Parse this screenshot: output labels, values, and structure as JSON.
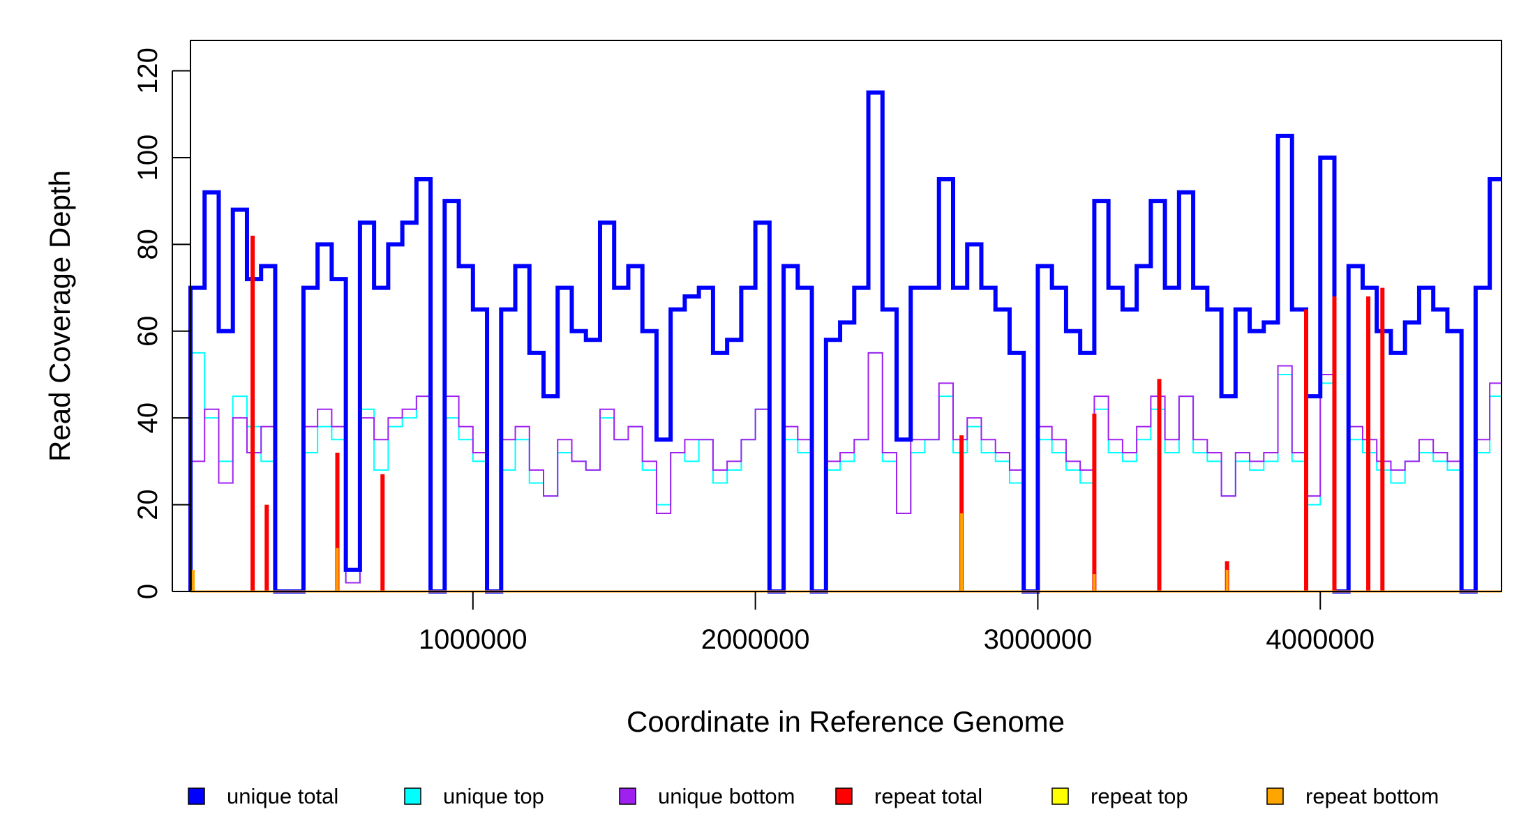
{
  "chart_data": {
    "type": "line",
    "title": "",
    "xlabel": "Coordinate in Reference Genome",
    "ylabel": "Read Coverage Depth",
    "xlim": [
      0,
      4641652
    ],
    "ylim": [
      0,
      127
    ],
    "xticks": [
      1000000,
      2000000,
      3000000,
      4000000
    ],
    "xtick_labels": [
      "1000000",
      "2000000",
      "3000000",
      "4000000"
    ],
    "yticks": [
      0,
      20,
      40,
      60,
      80,
      100,
      120
    ],
    "ytick_labels": [
      "0",
      "20",
      "40",
      "60",
      "80",
      "100",
      "120"
    ],
    "grid": false,
    "legend_position": "bottom",
    "series": [
      {
        "name": "unique total",
        "color": "#0000ff",
        "x": [
          0,
          50000,
          100000,
          150000,
          200000,
          250000,
          300000,
          350000,
          400000,
          450000,
          500000,
          550000,
          600000,
          650000,
          700000,
          750000,
          800000,
          850000,
          900000,
          950000,
          1000000,
          1050000,
          1100000,
          1150000,
          1200000,
          1250000,
          1300000,
          1350000,
          1400000,
          1450000,
          1500000,
          1550000,
          1600000,
          1650000,
          1700000,
          1750000,
          1800000,
          1850000,
          1900000,
          1950000,
          2000000,
          2050000,
          2100000,
          2150000,
          2200000,
          2250000,
          2300000,
          2350000,
          2400000,
          2450000,
          2500000,
          2550000,
          2600000,
          2650000,
          2700000,
          2750000,
          2800000,
          2850000,
          2900000,
          2950000,
          3000000,
          3050000,
          3100000,
          3150000,
          3200000,
          3250000,
          3300000,
          3350000,
          3400000,
          3450000,
          3500000,
          3550000,
          3600000,
          3650000,
          3700000,
          3750000,
          3800000,
          3850000,
          3900000,
          3950000,
          4000000,
          4050000,
          4100000,
          4150000,
          4200000,
          4250000,
          4300000,
          4350000,
          4400000,
          4450000,
          4500000,
          4550000,
          4600000
        ],
        "y": [
          70,
          92,
          60,
          88,
          72,
          75,
          0,
          0,
          70,
          80,
          72,
          5,
          85,
          70,
          80,
          85,
          95,
          0,
          90,
          75,
          65,
          0,
          65,
          75,
          55,
          45,
          70,
          60,
          58,
          85,
          70,
          75,
          60,
          35,
          65,
          68,
          70,
          55,
          58,
          70,
          85,
          0,
          75,
          70,
          0,
          58,
          62,
          70,
          115,
          65,
          35,
          70,
          70,
          95,
          70,
          80,
          70,
          65,
          55,
          0,
          75,
          70,
          60,
          55,
          90,
          70,
          65,
          75,
          90,
          70,
          92,
          70,
          65,
          45,
          65,
          60,
          62,
          105,
          65,
          45,
          100,
          0,
          75,
          70,
          60,
          55,
          62,
          70,
          65,
          60,
          0,
          70,
          95
        ],
        "stroke": 6
      },
      {
        "name": "unique top",
        "color": "#00ffff",
        "x": [
          0,
          50000,
          100000,
          150000,
          200000,
          250000,
          300000,
          350000,
          400000,
          450000,
          500000,
          550000,
          600000,
          650000,
          700000,
          750000,
          800000,
          850000,
          900000,
          950000,
          1000000,
          1050000,
          1100000,
          1150000,
          1200000,
          1250000,
          1300000,
          1350000,
          1400000,
          1450000,
          1500000,
          1550000,
          1600000,
          1650000,
          1700000,
          1750000,
          1800000,
          1850000,
          1900000,
          1950000,
          2000000,
          2050000,
          2100000,
          2150000,
          2200000,
          2250000,
          2300000,
          2350000,
          2400000,
          2450000,
          2500000,
          2550000,
          2600000,
          2650000,
          2700000,
          2750000,
          2800000,
          2850000,
          2900000,
          2950000,
          3000000,
          3050000,
          3100000,
          3150000,
          3200000,
          3250000,
          3300000,
          3350000,
          3400000,
          3450000,
          3500000,
          3550000,
          3600000,
          3650000,
          3700000,
          3750000,
          3800000,
          3850000,
          3900000,
          3950000,
          4000000,
          4050000,
          4100000,
          4150000,
          4200000,
          4250000,
          4300000,
          4350000,
          4400000,
          4450000,
          4500000,
          4550000,
          4600000
        ],
        "y": [
          55,
          40,
          30,
          45,
          38,
          30,
          0,
          0,
          32,
          38,
          35,
          2,
          42,
          28,
          38,
          40,
          45,
          0,
          40,
          35,
          30,
          0,
          28,
          35,
          25,
          22,
          32,
          30,
          28,
          40,
          35,
          38,
          28,
          20,
          32,
          30,
          35,
          25,
          28,
          35,
          42,
          0,
          35,
          32,
          0,
          28,
          30,
          35,
          55,
          30,
          18,
          32,
          35,
          45,
          32,
          38,
          32,
          30,
          25,
          0,
          35,
          32,
          28,
          25,
          42,
          32,
          30,
          35,
          42,
          32,
          45,
          32,
          30,
          22,
          30,
          28,
          30,
          50,
          30,
          20,
          48,
          0,
          35,
          32,
          28,
          25,
          30,
          32,
          30,
          28,
          0,
          32,
          45
        ],
        "stroke": 2
      },
      {
        "name": "unique bottom",
        "color": "#a020f0",
        "x": [
          0,
          50000,
          100000,
          150000,
          200000,
          250000,
          300000,
          350000,
          400000,
          450000,
          500000,
          550000,
          600000,
          650000,
          700000,
          750000,
          800000,
          850000,
          900000,
          950000,
          1000000,
          1050000,
          1100000,
          1150000,
          1200000,
          1250000,
          1300000,
          1350000,
          1400000,
          1450000,
          1500000,
          1550000,
          1600000,
          1650000,
          1700000,
          1750000,
          1800000,
          1850000,
          1900000,
          1950000,
          2000000,
          2050000,
          2100000,
          2150000,
          2200000,
          2250000,
          2300000,
          2350000,
          2400000,
          2450000,
          2500000,
          2550000,
          2600000,
          2650000,
          2700000,
          2750000,
          2800000,
          2850000,
          2900000,
          2950000,
          3000000,
          3050000,
          3100000,
          3150000,
          3200000,
          3250000,
          3300000,
          3350000,
          3400000,
          3450000,
          3500000,
          3550000,
          3600000,
          3650000,
          3700000,
          3750000,
          3800000,
          3850000,
          3900000,
          3950000,
          4000000,
          4050000,
          4100000,
          4150000,
          4200000,
          4250000,
          4300000,
          4350000,
          4400000,
          4450000,
          4500000,
          4550000,
          4600000
        ],
        "y": [
          30,
          42,
          25,
          40,
          32,
          38,
          0,
          0,
          38,
          42,
          38,
          2,
          40,
          35,
          40,
          42,
          45,
          0,
          45,
          38,
          32,
          0,
          35,
          38,
          28,
          22,
          35,
          30,
          28,
          42,
          35,
          38,
          30,
          18,
          32,
          35,
          35,
          28,
          30,
          35,
          42,
          0,
          38,
          35,
          0,
          30,
          32,
          35,
          55,
          32,
          18,
          35,
          35,
          48,
          35,
          40,
          35,
          32,
          28,
          0,
          38,
          35,
          30,
          28,
          45,
          35,
          32,
          38,
          45,
          35,
          45,
          35,
          32,
          22,
          32,
          30,
          32,
          52,
          32,
          22,
          50,
          0,
          38,
          35,
          30,
          28,
          30,
          35,
          32,
          30,
          0,
          35,
          48
        ],
        "stroke": 2
      },
      {
        "name": "repeat total",
        "color": "#ff0000",
        "x": [
          220000,
          270000,
          520000,
          680000,
          2730000,
          3200000,
          3430000,
          3670000,
          3950000,
          4050000,
          4170000,
          4220000
        ],
        "y": [
          82,
          20,
          32,
          27,
          36,
          41,
          49,
          7,
          65,
          68,
          68,
          70
        ],
        "stroke": 6
      },
      {
        "name": "repeat top",
        "color": "#ffff00",
        "x": [],
        "y": [],
        "stroke": 2
      },
      {
        "name": "repeat bottom",
        "color": "#ffa500",
        "x": [
          10000,
          520000,
          2730000,
          3200000,
          3670000
        ],
        "y": [
          5,
          10,
          18,
          4,
          5
        ],
        "stroke": 4
      }
    ]
  }
}
